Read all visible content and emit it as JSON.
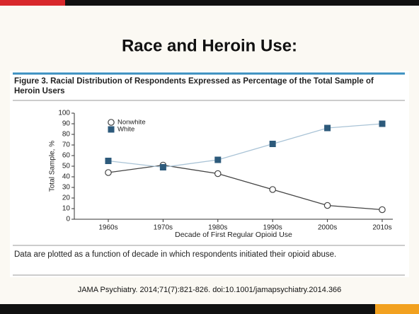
{
  "slide_title": "Race and Heroin Use:",
  "figure_caption": "Figure 3. Racial Distribution of Respondents Expressed as Percentage of the Total Sample of Heroin Users",
  "chart_data": {
    "type": "line",
    "categories": [
      "1960s",
      "1970s",
      "1980s",
      "1990s",
      "2000s",
      "2010s"
    ],
    "series": [
      {
        "name": "Nonwhite",
        "color": "#444444",
        "marker": "open-circle",
        "values": [
          44,
          51,
          43,
          28,
          13,
          9
        ]
      },
      {
        "name": "White",
        "color": "#2d5a7b",
        "line_color": "#a9c3d6",
        "marker": "square",
        "values": [
          55,
          49,
          56,
          71,
          86,
          90
        ]
      }
    ],
    "x_label": "Decade of First Regular Opioid Use",
    "y_label": "Total Sample, %",
    "ylim": [
      0,
      100
    ],
    "yticks": [
      0,
      10,
      20,
      30,
      40,
      50,
      60,
      70,
      80,
      90,
      100
    ],
    "legend": "upper left"
  },
  "footnote": "Data are plotted as a function of decade in which respondents initiated their opioid abuse.",
  "citation": "JAMA Psychiatry. 2014;71(7):821-826. doi:10.1001/jamapsychiatry.2014.366"
}
